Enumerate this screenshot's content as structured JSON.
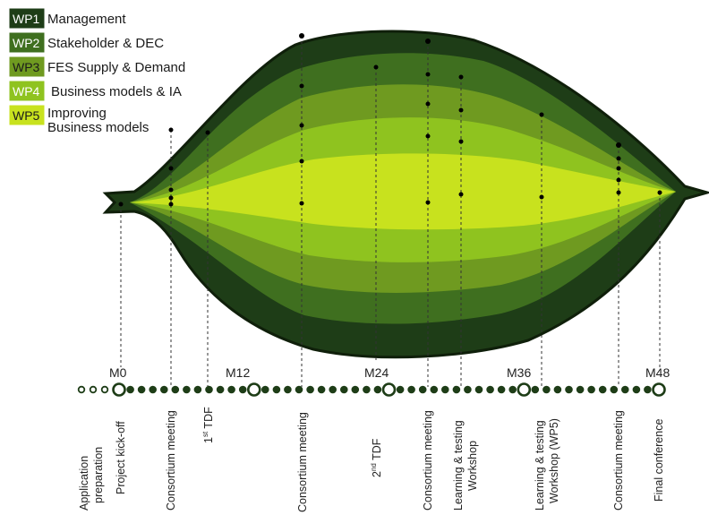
{
  "legend": [
    {
      "code": "WP1",
      "name": "Management",
      "name2": "",
      "fill": "#1e3d17",
      "text_color": "#ffffff"
    },
    {
      "code": "WP2",
      "name": "Stakeholder & DEC",
      "name2": "",
      "fill": "#3f6f1f",
      "text_color": "#ffffff"
    },
    {
      "code": "WP3",
      "name": "FES Supply & Demand",
      "name2": "",
      "fill": "#6f9a20",
      "text_color": "#1a1a1a"
    },
    {
      "code": "WP4",
      "name": "Business models & IA",
      "name2": "",
      "fill": "#8fc31f",
      "text_color": "#ffffff"
    },
    {
      "code": "WP5",
      "name": "Improving",
      "name2": "Business models",
      "fill": "#c8e21e",
      "text_color": "#1a1a1a"
    }
  ],
  "milestones": [
    "M0",
    "M12",
    "M24",
    "M36",
    "M48"
  ],
  "events": [
    {
      "id": "application",
      "lines": [
        "Application",
        "preparation"
      ]
    },
    {
      "id": "kickoff",
      "lines": [
        "Project kick-off"
      ]
    },
    {
      "id": "cm1",
      "lines": [
        "Consortium meeting"
      ]
    },
    {
      "id": "tdf1",
      "lines": [
        "1st TDF"
      ]
    },
    {
      "id": "cm2",
      "lines": [
        "Consortium meeting"
      ]
    },
    {
      "id": "tdf2",
      "lines": [
        "2nd TDF"
      ]
    },
    {
      "id": "cm3",
      "lines": [
        "Consortium meeting"
      ]
    },
    {
      "id": "ltw1",
      "lines": [
        "Learning & testing",
        "Workshop"
      ]
    },
    {
      "id": "ltw2",
      "lines": [
        "Learning & testing",
        "Workshop (WP5)"
      ]
    },
    {
      "id": "cm4",
      "lines": [
        "Consortium meeting"
      ]
    },
    {
      "id": "final",
      "lines": [
        "Final conference"
      ]
    }
  ],
  "colors": {
    "outline": "#0f1f0a",
    "wp1": "#1e3d17",
    "wp2": "#3f6f1f",
    "wp3": "#6f9a20",
    "wp4": "#8fc31f",
    "wp5": "#c8e21e",
    "timeline": "#1e3d17"
  }
}
